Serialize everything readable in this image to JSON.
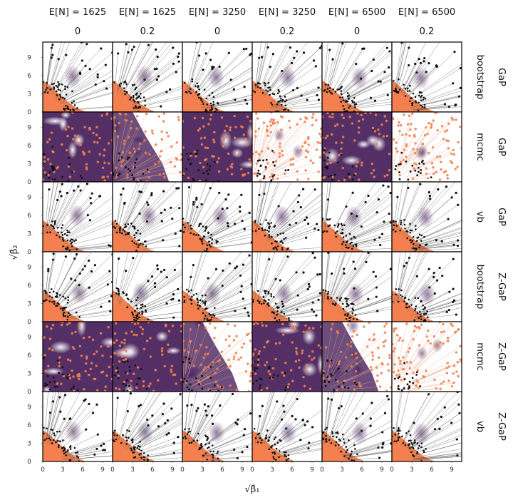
{
  "chart_data": {
    "type": "scatter",
    "title": "",
    "xlabel": "√β̂₁",
    "ylabel": "√β̂₂",
    "xlim": [
      0,
      10.5
    ],
    "ylim": [
      0,
      11.5
    ],
    "xticks": [
      "0",
      "3",
      "6",
      "9"
    ],
    "yticks": [
      "0",
      "3",
      "6",
      "9"
    ],
    "columns": [
      {
        "n_label": "E[N] = 1625",
        "p_label": "0"
      },
      {
        "n_label": "E[N] = 1625",
        "p_label": "0.2"
      },
      {
        "n_label": "E[N] = 3250",
        "p_label": "0"
      },
      {
        "n_label": "E[N] = 3250",
        "p_label": "0.2"
      },
      {
        "n_label": "E[N] = 6500",
        "p_label": "0"
      },
      {
        "n_label": "E[N] = 6500",
        "p_label": "0.2"
      }
    ],
    "rows": [
      {
        "model": "GaP",
        "method": "bootstrap"
      },
      {
        "model": "GaP",
        "method": "mcmc"
      },
      {
        "model": "GaP",
        "method": "vb"
      },
      {
        "model": "Z-GaP",
        "method": "bootstrap"
      },
      {
        "model": "Z-GaP",
        "method": "mcmc"
      },
      {
        "model": "Z-GaP",
        "method": "vb"
      }
    ],
    "panel_style": {
      "bootstrap": [
        "light",
        "light",
        "light",
        "light",
        "light",
        "light"
      ],
      "mcmc_GaP": [
        "full",
        "half",
        "full",
        "none",
        "full",
        "none"
      ],
      "vb": [
        "light",
        "light",
        "light",
        "light",
        "light",
        "light"
      ],
      "mcmc_Z-GaP": [
        "full",
        "full",
        "half",
        "full",
        "half",
        "none"
      ]
    },
    "colors": {
      "true_points": "#f4804f",
      "estimates": "#111111",
      "density": "#3b1250",
      "frame": "#000000"
    }
  }
}
